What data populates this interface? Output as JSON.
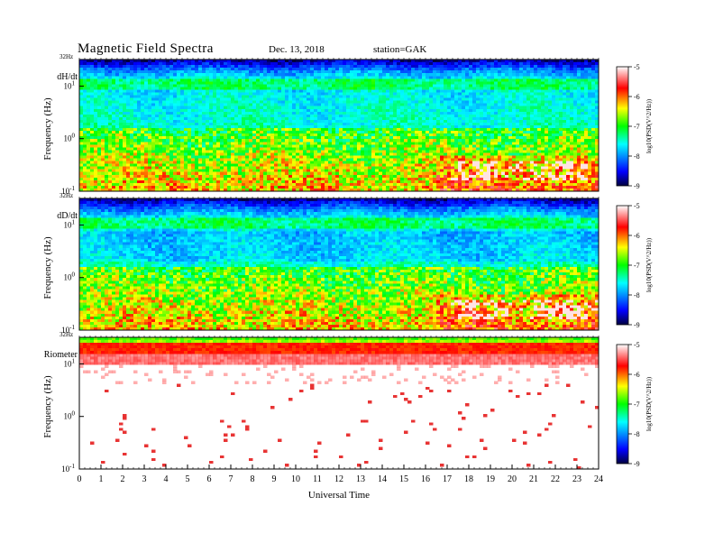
{
  "header": {
    "title": "Magnetic  Field  Spectra",
    "date": "Dec. 13, 2018",
    "station": "station=GAK"
  },
  "chart_data": [
    {
      "type": "heatmap",
      "panel_label": "dH/dt",
      "top_label": "32Hz",
      "ylabel": "Frequency  (Hz)",
      "y_ticks": [
        {
          "base": "10",
          "exp": "1",
          "value": 10
        },
        {
          "base": "10",
          "exp": "0",
          "value": 1
        },
        {
          "base": "10",
          "exp": "-1",
          "value": 0.1
        }
      ],
      "ylim": [
        0.1,
        32
      ],
      "y_scale": "log",
      "colorbar": {
        "label": "log10(PSD(V^2/Hz))",
        "ticks": [
          "-5",
          "-6",
          "-7",
          "-8",
          "-9"
        ],
        "range": [
          -9,
          -5
        ]
      },
      "description": "broadband power; strong near 0.1-0.5 Hz, white saturated patches after 17 UT"
    },
    {
      "type": "heatmap",
      "panel_label": "dD/dt",
      "top_label": "32Hz",
      "ylabel": "Frequency  (Hz)",
      "y_ticks": [
        {
          "base": "10",
          "exp": "1",
          "value": 10
        },
        {
          "base": "10",
          "exp": "0",
          "value": 1
        },
        {
          "base": "10",
          "exp": "-1",
          "value": 0.1
        }
      ],
      "ylim": [
        0.1,
        32
      ],
      "y_scale": "log",
      "colorbar": {
        "label": "log10(PSD(V^2/Hz))",
        "ticks": [
          "-5",
          "-6",
          "-7",
          "-8",
          "-9"
        ],
        "range": [
          -9,
          -5
        ]
      }
    },
    {
      "type": "heatmap",
      "panel_label": "Riometer",
      "top_label": "32Hz",
      "ylabel": "Frequency  (Hz)",
      "y_ticks": [
        {
          "base": "10",
          "exp": "1",
          "value": 10
        },
        {
          "base": "10",
          "exp": "0",
          "value": 1
        },
        {
          "base": "10",
          "exp": "-1",
          "value": 0.1
        }
      ],
      "ylim": [
        0.1,
        32
      ],
      "y_scale": "log",
      "colorbar": {
        "label": "log10(PSD(V^2/Hz))",
        "ticks": [
          "-5",
          "-6",
          "-7",
          "-8",
          "-9"
        ],
        "range": [
          -9,
          -5
        ]
      }
    }
  ],
  "x_axis": {
    "label": "Universal Time",
    "ticks": [
      "0",
      "1",
      "2",
      "3",
      "4",
      "5",
      "6",
      "7",
      "8",
      "9",
      "10",
      "11",
      "12",
      "13",
      "14",
      "15",
      "16",
      "17",
      "18",
      "19",
      "20",
      "21",
      "22",
      "23",
      "24"
    ],
    "range": [
      0,
      24
    ]
  },
  "colors": {
    "colormap": [
      "#000040",
      "#0000ff",
      "#00ffff",
      "#00ff00",
      "#ffff00",
      "#ff0000",
      "#ffffff"
    ]
  }
}
